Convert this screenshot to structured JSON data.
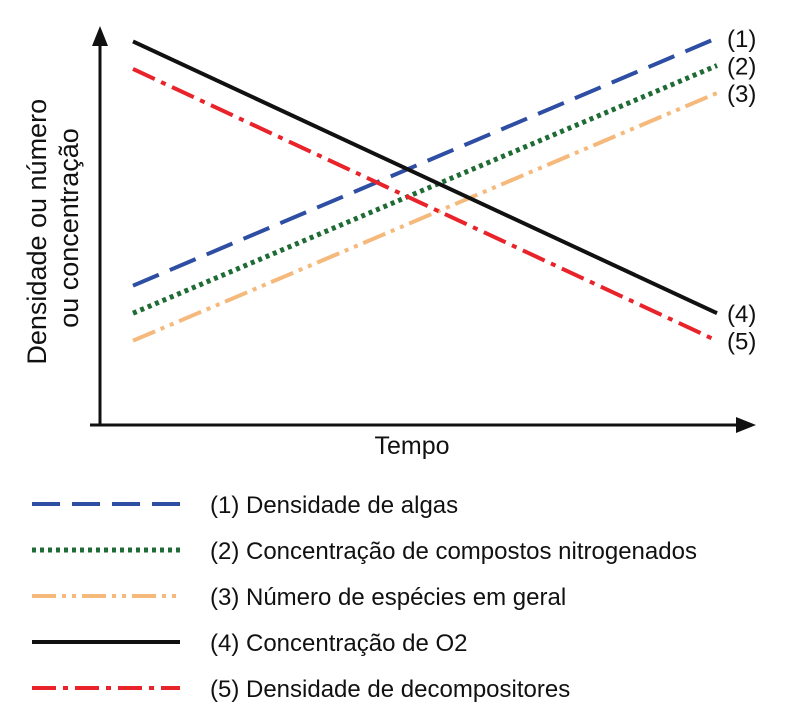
{
  "chart_data": {
    "type": "line",
    "xlabel": "Tempo",
    "ylabel_lines": [
      "Densidade ou número",
      "ou concentração"
    ],
    "x": [
      0,
      1
    ],
    "xlim": [
      0,
      1
    ],
    "ylim": [
      0,
      1
    ],
    "grid": false,
    "legend_position": "bottom",
    "series": [
      {
        "id": "1",
        "end_label": "(1)",
        "name": "(1) Densidade de algas",
        "values": [
          0.28,
          1.0
        ],
        "color": "#2e4ea3",
        "dash": "dashed"
      },
      {
        "id": "2",
        "end_label": "(2)",
        "name": "(2) Concentração de compostos nitrogenados",
        "values": [
          0.2,
          0.92
        ],
        "color": "#1f6b35",
        "dash": "dotted"
      },
      {
        "id": "3",
        "end_label": "(3)",
        "name": "(3) Número de espécies em geral",
        "values": [
          0.12,
          0.84
        ],
        "color": "#f5b97c",
        "dash": "dash-dot-dot"
      },
      {
        "id": "4",
        "end_label": "(4)",
        "name": "(4) Concentração de O2",
        "values": [
          0.99,
          0.2
        ],
        "color": "#111111",
        "dash": "solid"
      },
      {
        "id": "5",
        "end_label": "(5)",
        "name": "(5) Densidade de decompositores",
        "values": [
          0.91,
          0.12
        ],
        "color": "#e8232a",
        "dash": "dash-dot"
      }
    ]
  }
}
